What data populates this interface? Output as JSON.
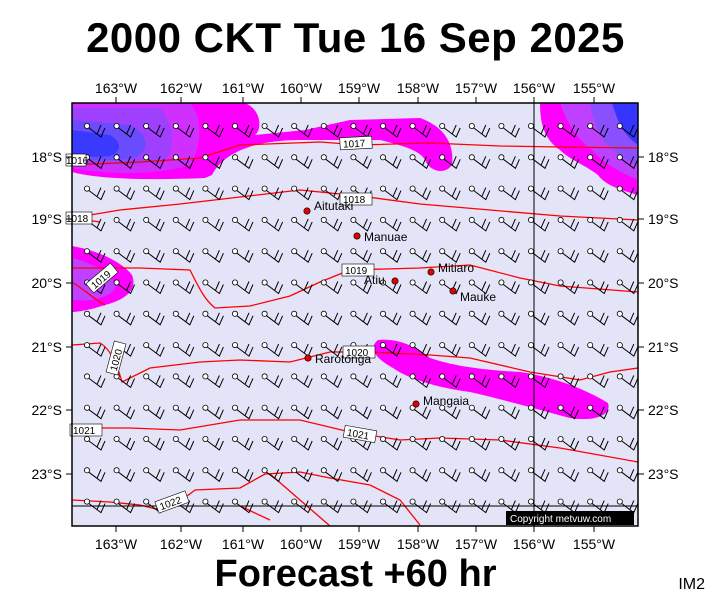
{
  "title": "2000 CKT Tue 16 Sep 2025",
  "footer": "Forecast +60 hr",
  "tag": "IM2",
  "copyright": "Copyright metvuw.com",
  "colors": {
    "background": "#e4e4f8",
    "isobar": "#ff0000",
    "magenta": "#ff00ff",
    "purple": "#8000ff",
    "blue": "#2020ff",
    "marker": "#e00000"
  },
  "lon_labels": [
    "163°W",
    "162°W",
    "161°W",
    "160°W",
    "159°W",
    "158°W",
    "157°W",
    "156°W",
    "155°W"
  ],
  "lat_labels": [
    "18°S",
    "19°S",
    "20°S",
    "21°S",
    "22°S",
    "23°S"
  ],
  "places": [
    {
      "name": "Aitutaki"
    },
    {
      "name": "Manuae"
    },
    {
      "name": "Mitiaro"
    },
    {
      "name": "Atiu"
    },
    {
      "name": "Mauke"
    },
    {
      "name": "Rarotonga"
    },
    {
      "name": "Mangaia"
    }
  ],
  "isobars": [
    "1017",
    "1018",
    "1019",
    "1019",
    "1020",
    "1020",
    "1021",
    "1021",
    "1022",
    "1016",
    "1018"
  ]
}
